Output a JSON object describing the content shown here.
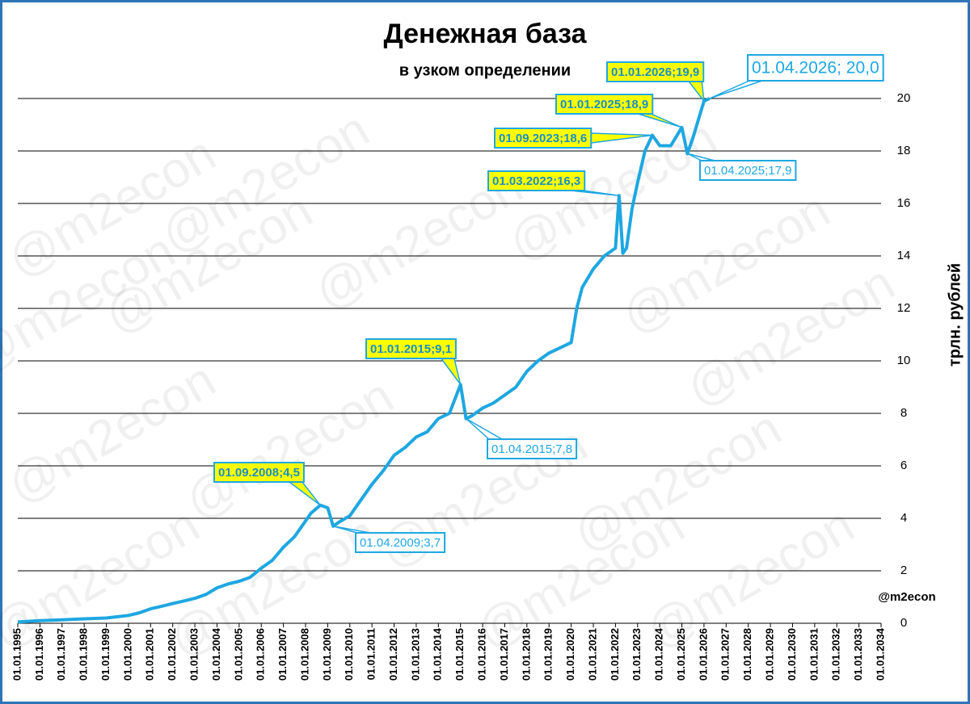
{
  "chart_data": {
    "type": "line",
    "title": "Денежная база",
    "subtitle": "в узком определении",
    "y_label": "трлн. рублей",
    "source": "@m2econ",
    "watermark": "@m2econ",
    "series": [
      {
        "name": "Денежная база",
        "color": "#1ea7e1",
        "x": [
          "1995-01",
          "1996-01",
          "1997-01",
          "1998-01",
          "1999-01",
          "2000-01",
          "2000-07",
          "2001-01",
          "2001-07",
          "2002-01",
          "2002-07",
          "2003-01",
          "2003-07",
          "2004-01",
          "2004-07",
          "2005-01",
          "2005-07",
          "2006-01",
          "2006-07",
          "2007-01",
          "2007-07",
          "2008-01",
          "2008-04",
          "2008-09",
          "2009-01",
          "2009-04",
          "2009-07",
          "2010-01",
          "2010-07",
          "2011-01",
          "2011-07",
          "2012-01",
          "2012-07",
          "2013-01",
          "2013-07",
          "2014-01",
          "2014-07",
          "2015-01",
          "2015-04",
          "2015-07",
          "2016-01",
          "2016-07",
          "2017-01",
          "2017-07",
          "2018-01",
          "2018-07",
          "2019-01",
          "2019-07",
          "2020-01",
          "2020-04",
          "2020-07",
          "2021-01",
          "2021-07",
          "2022-01",
          "2022-03",
          "2022-05",
          "2022-07",
          "2022-10",
          "2023-01",
          "2023-05",
          "2023-09",
          "2024-01",
          "2024-07",
          "2025-01",
          "2025-04",
          "2025-07",
          "2026-01",
          "2026-04"
        ],
        "values": [
          0.05,
          0.1,
          0.13,
          0.17,
          0.2,
          0.3,
          0.4,
          0.55,
          0.65,
          0.75,
          0.85,
          0.95,
          1.1,
          1.35,
          1.5,
          1.6,
          1.75,
          2.1,
          2.4,
          2.9,
          3.3,
          3.9,
          4.2,
          4.5,
          4.4,
          3.7,
          3.85,
          4.1,
          4.7,
          5.3,
          5.8,
          6.4,
          6.7,
          7.1,
          7.3,
          7.8,
          8.0,
          9.1,
          7.8,
          7.9,
          8.2,
          8.4,
          8.7,
          9.0,
          9.6,
          10.0,
          10.3,
          10.5,
          10.7,
          12.0,
          12.8,
          13.5,
          14.0,
          14.3,
          16.3,
          14.1,
          14.3,
          15.8,
          16.8,
          18.0,
          18.6,
          18.2,
          18.2,
          18.9,
          17.9,
          18.5,
          19.9,
          20.0
        ]
      }
    ],
    "annotations": [
      {
        "x": "2008-09",
        "value": 4.5,
        "label": "01.09.2008;4,5",
        "style": "peak"
      },
      {
        "x": "2009-04",
        "value": 3.7,
        "label": "01.04.2009;3,7",
        "style": "trough"
      },
      {
        "x": "2015-01",
        "value": 9.1,
        "label": "01.01.2015;9,1",
        "style": "peak"
      },
      {
        "x": "2015-04",
        "value": 7.8,
        "label": "01.04.2015;7,8",
        "style": "trough"
      },
      {
        "x": "2022-03",
        "value": 16.3,
        "label": "01.03.2022;16,3",
        "style": "peak"
      },
      {
        "x": "2023-09",
        "value": 18.6,
        "label": "01.09.2023;18,6",
        "style": "peak"
      },
      {
        "x": "2025-01",
        "value": 18.9,
        "label": "01.01.2025;18,9",
        "style": "peak"
      },
      {
        "x": "2025-04",
        "value": 17.9,
        "label": "01.04.2025;17,9",
        "style": "trough"
      },
      {
        "x": "2026-01",
        "value": 19.9,
        "label": "01.01.2026;19,9",
        "style": "peak"
      },
      {
        "x": "2026-04",
        "value": 20.0,
        "label": "01.04.2026; 20,0",
        "style": "latest"
      }
    ],
    "xlim": [
      "1995-01",
      "2034-01"
    ],
    "xticks": [
      {
        "value": "1995-01",
        "label": "01.01.1995"
      },
      {
        "value": "1996-01",
        "label": "01.01.1996"
      },
      {
        "value": "1997-01",
        "label": "01.01.1997"
      },
      {
        "value": "1998-01",
        "label": "01.01.1998"
      },
      {
        "value": "1999-01",
        "label": "01.01.1999"
      },
      {
        "value": "2000-01",
        "label": "01.01.2000"
      },
      {
        "value": "2001-01",
        "label": "01.01.2001"
      },
      {
        "value": "2002-01",
        "label": "01.01.2002"
      },
      {
        "value": "2003-01",
        "label": "01.01.2003"
      },
      {
        "value": "2004-01",
        "label": "01.01.2004"
      },
      {
        "value": "2005-01",
        "label": "01.01.2005"
      },
      {
        "value": "2006-01",
        "label": "01.01.2006"
      },
      {
        "value": "2007-01",
        "label": "01.01.2007"
      },
      {
        "value": "2008-01",
        "label": "01.01.2008"
      },
      {
        "value": "2009-01",
        "label": "01.01.2009"
      },
      {
        "value": "2010-01",
        "label": "01.01.2010"
      },
      {
        "value": "2011-01",
        "label": "01.01.2011"
      },
      {
        "value": "2012-01",
        "label": "01.01.2012"
      },
      {
        "value": "2013-01",
        "label": "01.01.2013"
      },
      {
        "value": "2014-01",
        "label": "01.01.2014"
      },
      {
        "value": "2015-01",
        "label": "01.01.2015"
      },
      {
        "value": "2016-01",
        "label": "01.01.2016"
      },
      {
        "value": "2017-01",
        "label": "01.01.2017"
      },
      {
        "value": "2018-01",
        "label": "01.01.2018"
      },
      {
        "value": "2019-01",
        "label": "01.01.2019"
      },
      {
        "value": "2020-01",
        "label": "01.01.2020"
      },
      {
        "value": "2021-01",
        "label": "01.01.2021"
      },
      {
        "value": "2022-01",
        "label": "01.01.2022"
      },
      {
        "value": "2023-01",
        "label": "01.01.2023"
      },
      {
        "value": "2024-01",
        "label": "01.01.2024"
      },
      {
        "value": "2025-01",
        "label": "01.01.2025"
      },
      {
        "value": "2026-01",
        "label": "01.01.2026"
      },
      {
        "value": "2027-01",
        "label": "01.01.2027"
      },
      {
        "value": "2028-01",
        "label": "01.01.2028"
      },
      {
        "value": "2029-01",
        "label": "01.01.2029"
      },
      {
        "value": "2030-01",
        "label": "01.01.2030"
      },
      {
        "value": "2031-01",
        "label": "01.01.2031"
      },
      {
        "value": "2032-01",
        "label": "01.01.2032"
      },
      {
        "value": "2033-01",
        "label": "01.01.2033"
      },
      {
        "value": "2034-01",
        "label": "01.01.2034"
      }
    ],
    "ylim": [
      0,
      20
    ],
    "yticks": [
      0,
      2,
      4,
      6,
      8,
      10,
      12,
      14,
      16,
      18,
      20
    ],
    "grid": true
  }
}
